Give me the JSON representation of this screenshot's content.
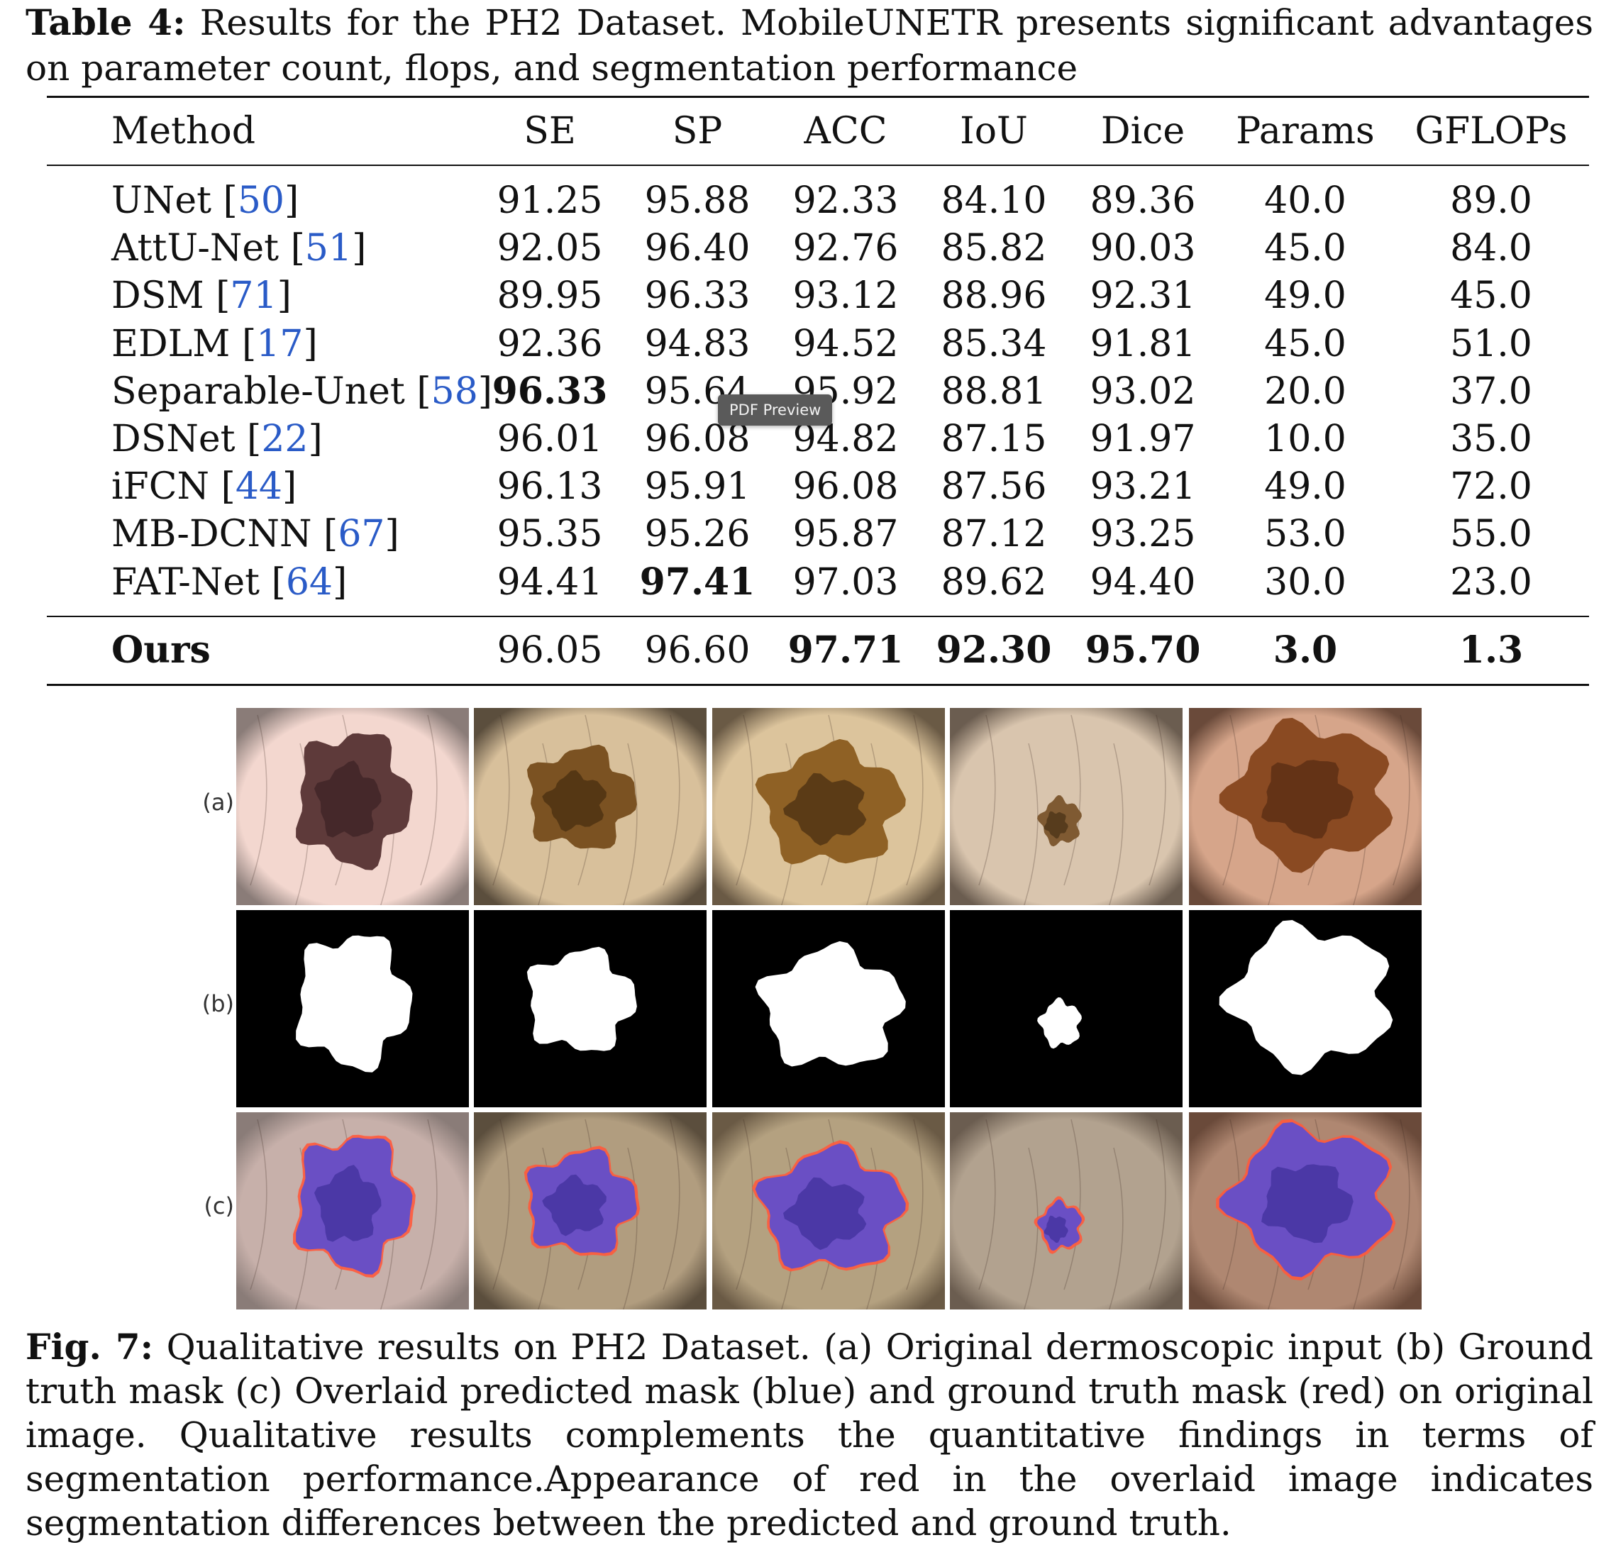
{
  "table": {
    "caption_label": "Table 4:",
    "caption_text": "Results for the PH2 Dataset. MobileUNETR presents significant advantages on parameter count, flops, and segmentation performance",
    "headers": [
      "Method",
      "SE",
      "SP",
      "ACC",
      "IoU",
      "Dice",
      "Params",
      "GFLOPs"
    ],
    "rows": [
      {
        "method": "UNet",
        "cite": "50",
        "values": [
          "91.25",
          "95.88",
          "92.33",
          "84.10",
          "89.36",
          "40.0",
          "89.0"
        ],
        "bold": []
      },
      {
        "method": "AttU-Net",
        "cite": "51",
        "values": [
          "92.05",
          "96.40",
          "92.76",
          "85.82",
          "90.03",
          "45.0",
          "84.0"
        ],
        "bold": []
      },
      {
        "method": "DSM",
        "cite": "71",
        "values": [
          "89.95",
          "96.33",
          "93.12",
          "88.96",
          "92.31",
          "49.0",
          "45.0"
        ],
        "bold": []
      },
      {
        "method": "EDLM",
        "cite": "17",
        "values": [
          "92.36",
          "94.83",
          "94.52",
          "85.34",
          "91.81",
          "45.0",
          "51.0"
        ],
        "bold": []
      },
      {
        "method": "Separable-Unet",
        "cite": "58",
        "values": [
          "96.33",
          "95.64",
          "95.92",
          "88.81",
          "93.02",
          "20.0",
          "37.0"
        ],
        "bold": [
          0
        ]
      },
      {
        "method": "DSNet",
        "cite": "22",
        "values": [
          "96.01",
          "96.08",
          "94.82",
          "87.15",
          "91.97",
          "10.0",
          "35.0"
        ],
        "bold": []
      },
      {
        "method": "iFCN",
        "cite": "44",
        "values": [
          "96.13",
          "95.91",
          "96.08",
          "87.56",
          "93.21",
          "49.0",
          "72.0"
        ],
        "bold": []
      },
      {
        "method": "MB-DCNN",
        "cite": "67",
        "values": [
          "95.35",
          "95.26",
          "95.87",
          "87.12",
          "93.25",
          "53.0",
          "55.0"
        ],
        "bold": []
      },
      {
        "method": "FAT-Net",
        "cite": "64",
        "values": [
          "94.41",
          "97.41",
          "97.03",
          "89.62",
          "94.40",
          "30.0",
          "23.0"
        ],
        "bold": [
          1
        ]
      }
    ],
    "ours": {
      "method": "Ours",
      "values": [
        "96.05",
        "96.60",
        "97.71",
        "92.30",
        "95.70",
        "3.0",
        "1.3"
      ],
      "bold": [
        2,
        3,
        4,
        5,
        6
      ]
    }
  },
  "figure": {
    "row_labels": [
      "(a)",
      "(b)",
      "(c)"
    ],
    "caption_label": "Fig. 7:",
    "caption_text": "Qualitative results on PH2 Dataset. (a) Original dermoscopic input (b) Ground truth mask (c) Overlaid predicted mask (blue) and ground truth mask (red) on original image. Qualitative results complements the quantitative findings in terms of segmentation performance.Appearance of red in the overlaid image indicates segmentation differences between the predicted and ground truth."
  },
  "tooltip": {
    "text": "PDF Preview"
  },
  "colors": {
    "citation": "#2a5bc7",
    "mask_background": "#000000",
    "mask_foreground": "#ffffff",
    "prediction_overlay": "#6a4fc4",
    "ground_truth_edge": "#ff5a3c"
  }
}
